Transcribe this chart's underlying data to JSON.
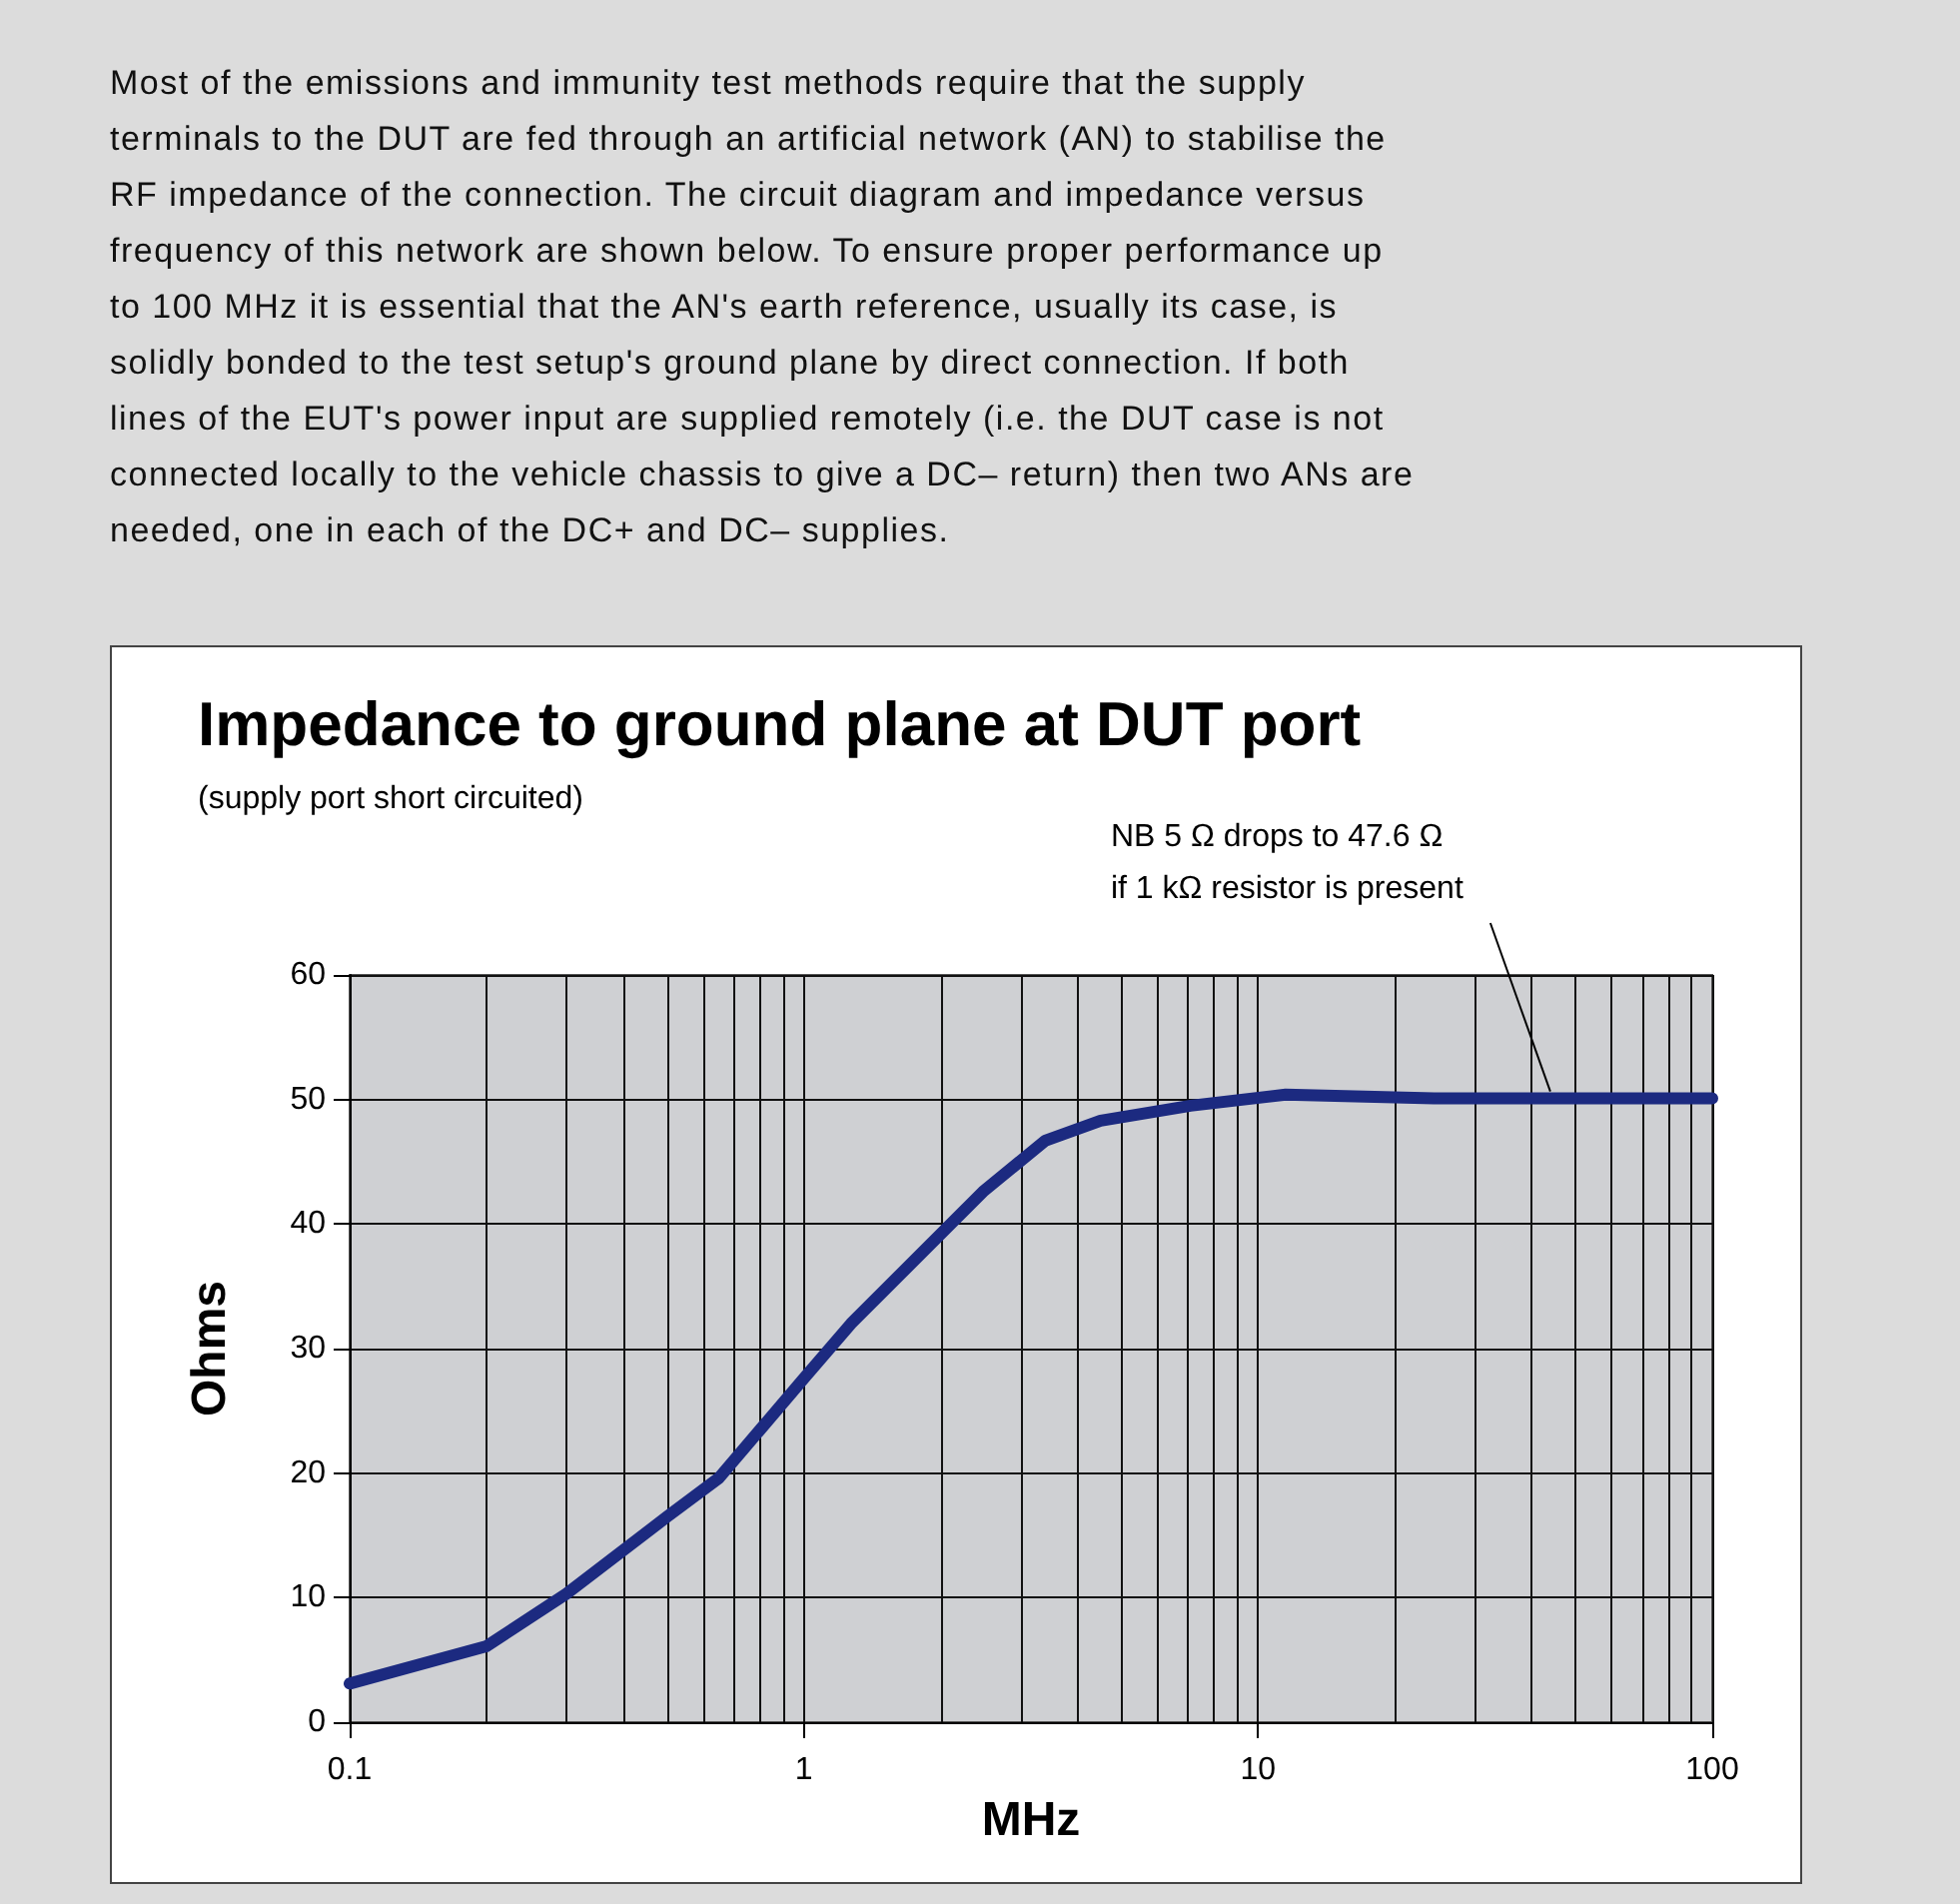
{
  "chart_data": {
    "type": "line",
    "title": "Impedance to ground plane at DUT port",
    "subtitle": "(supply port short circuited)",
    "xlabel": "MHz",
    "ylabel": "Ohms",
    "annotations": [
      "Most of the emissions and immunity test methods require that the supply terminals to the DUT are fed through an artificial network (AN) to stabilise the RF impedance of the connection. The circuit diagram and impedance versus frequency of this network are shown below. To ensure proper performance up to 100 MHz it is essential that the AN's earth reference, usually its case, is solidly bonded to the test setup's ground plane by direct connection. If both lines of the EUT's power input are supplied remotely (i.e. the DUT case is not connected locally to the vehicle chassis to give a DC– return) then two ANs are needed, one in each of the DC+ and DC– supplies.",
      {
        "text": "NB 5 Ω drops to 47.6 Ω\nif 1 kΩ resistor is present",
        "x": 44,
        "y": 50
      }
    ],
    "x": [
      0.1,
      0.2,
      0.3,
      0.5,
      0.65,
      1.0,
      1.27,
      2.48,
      3.4,
      4.5,
      7.1,
      11.5,
      24.4,
      100
    ],
    "series": [
      {
        "color": "#1c2a80",
        "values": [
          3.1,
          6.1,
          10.3,
          16.5,
          19.6,
          27.6,
          32.0,
          42.6,
          46.7,
          48.3,
          49.5,
          50.4,
          50.1,
          50.1
        ]
      }
    ],
    "xlim": [
      0.1,
      100
    ],
    "xticks": [
      0.1,
      {
        "value": 0.2,
        "label": null
      },
      {
        "value": 0.3,
        "label": null
      },
      {
        "value": 0.4,
        "label": null
      },
      {
        "value": 0.5,
        "label": null
      },
      {
        "value": 0.6,
        "label": null
      },
      {
        "value": 0.7,
        "label": null
      },
      {
        "value": 0.8,
        "label": null
      },
      {
        "value": 0.9,
        "label": null
      },
      1,
      {
        "value": 2,
        "label": null
      },
      {
        "value": 3,
        "label": null
      },
      {
        "value": 4,
        "label": null
      },
      {
        "value": 5,
        "label": null
      },
      {
        "value": 6,
        "label": null
      },
      {
        "value": 7,
        "label": null
      },
      {
        "value": 8,
        "label": null
      },
      {
        "value": 9,
        "label": null
      },
      10,
      {
        "value": 20,
        "label": null
      },
      {
        "value": 30,
        "label": null
      },
      {
        "value": 40,
        "label": null
      },
      {
        "value": 50,
        "label": null
      },
      {
        "value": 60,
        "label": null
      },
      {
        "value": 70,
        "label": null
      },
      {
        "value": 80,
        "label": null
      },
      {
        "value": 90,
        "label": null
      },
      100
    ],
    "ylim": [
      0,
      60
    ],
    "yticks": [
      0,
      10,
      20,
      30,
      40,
      50,
      60
    ],
    "log": "x",
    "grid": true,
    "marker": "none",
    "line_style": "solid"
  }
}
